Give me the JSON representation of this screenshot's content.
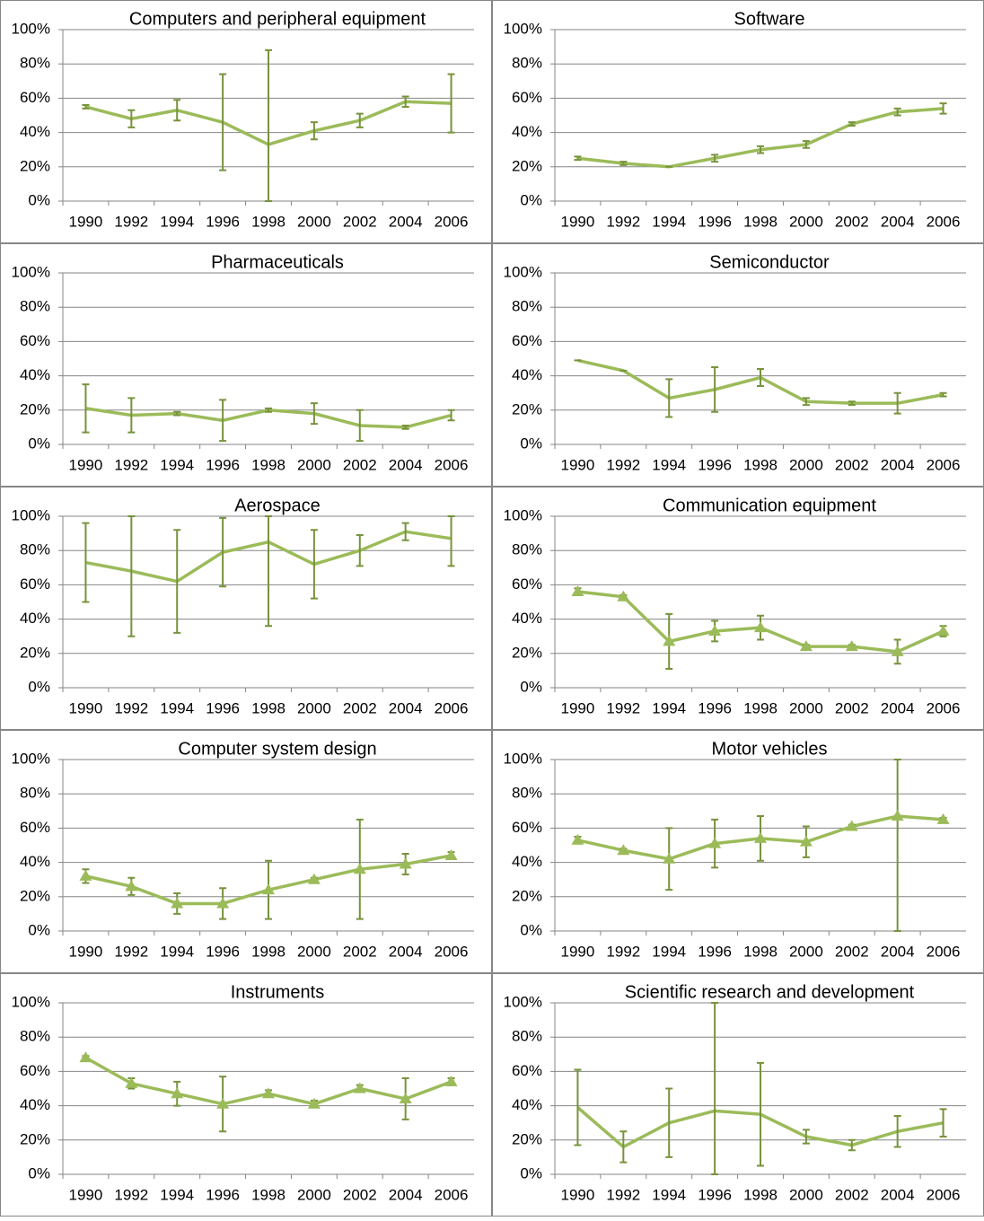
{
  "chart_data": [
    {
      "type": "line",
      "title": "Computers and peripheral equipment",
      "categories": [
        "1990",
        "1992",
        "1994",
        "1996",
        "1998",
        "2000",
        "2002",
        "2004",
        "2006"
      ],
      "values": [
        55,
        48,
        53,
        46,
        33,
        41,
        47,
        58,
        57
      ],
      "errors": [
        1,
        5,
        6,
        28,
        55,
        5,
        4,
        3,
        17
      ],
      "color": "#9bbb59",
      "marker": "none",
      "ylim": [
        0,
        100
      ],
      "yticks": [
        {
          "value": 0,
          "label": "0%"
        },
        {
          "value": 20,
          "label": "20%"
        },
        {
          "value": 40,
          "label": "40%"
        },
        {
          "value": 60,
          "label": "60%"
        },
        {
          "value": 80,
          "label": "80%"
        },
        {
          "value": 100,
          "label": "100%"
        }
      ],
      "grid": true
    },
    {
      "type": "line",
      "title": "Software",
      "categories": [
        "1990",
        "1992",
        "1994",
        "1996",
        "1998",
        "2000",
        "2002",
        "2004",
        "2006"
      ],
      "values": [
        25,
        22,
        20,
        25,
        30,
        33,
        45,
        52,
        54
      ],
      "errors": [
        1,
        1,
        0,
        2,
        2,
        2,
        1,
        2,
        3
      ],
      "color": "#9bbb59",
      "marker": "none",
      "ylim": [
        0,
        100
      ],
      "yticks": [
        {
          "value": 0,
          "label": "0%"
        },
        {
          "value": 20,
          "label": "20%"
        },
        {
          "value": 40,
          "label": "40%"
        },
        {
          "value": 60,
          "label": "60%"
        },
        {
          "value": 80,
          "label": "80%"
        },
        {
          "value": 100,
          "label": "100%"
        }
      ],
      "grid": true
    },
    {
      "type": "line",
      "title": "Pharmaceuticals",
      "categories": [
        "1990",
        "1992",
        "1994",
        "1996",
        "1998",
        "2000",
        "2002",
        "2004",
        "2006"
      ],
      "values": [
        21,
        17,
        18,
        14,
        20,
        18,
        11,
        10,
        17
      ],
      "errors": [
        14,
        10,
        1,
        12,
        1,
        6,
        9,
        1,
        3
      ],
      "color": "#9bbb59",
      "marker": "none",
      "ylim": [
        0,
        100
      ],
      "yticks": [
        {
          "value": 0,
          "label": "0%"
        },
        {
          "value": 20,
          "label": "20%"
        },
        {
          "value": 40,
          "label": "40%"
        },
        {
          "value": 60,
          "label": "60%"
        },
        {
          "value": 80,
          "label": "80%"
        },
        {
          "value": 100,
          "label": "100%"
        }
      ],
      "grid": true
    },
    {
      "type": "line",
      "title": "Semiconductor",
      "categories": [
        "1990",
        "1992",
        "1994",
        "1996",
        "1998",
        "2000",
        "2002",
        "2004",
        "2006"
      ],
      "values": [
        49,
        43,
        27,
        32,
        39,
        25,
        24,
        24,
        29
      ],
      "errors": [
        0,
        0,
        11,
        13,
        5,
        2,
        1,
        6,
        1
      ],
      "color": "#9bbb59",
      "marker": "none",
      "ylim": [
        0,
        100
      ],
      "yticks": [
        {
          "value": 0,
          "label": "0%"
        },
        {
          "value": 20,
          "label": "20%"
        },
        {
          "value": 40,
          "label": "40%"
        },
        {
          "value": 60,
          "label": "60%"
        },
        {
          "value": 80,
          "label": "80%"
        },
        {
          "value": 100,
          "label": "100%"
        }
      ],
      "grid": true
    },
    {
      "type": "line",
      "title": "Aerospace",
      "categories": [
        "1990",
        "1992",
        "1994",
        "1996",
        "1998",
        "2000",
        "2002",
        "2004",
        "2006"
      ],
      "values": [
        73,
        68,
        62,
        79,
        85,
        72,
        80,
        91,
        87
      ],
      "errors": [
        23,
        38,
        30,
        20,
        49,
        20,
        9,
        5,
        16
      ],
      "color": "#9bbb59",
      "marker": "none",
      "ylim": [
        0,
        100
      ],
      "yticks": [
        {
          "value": 0,
          "label": "0%"
        },
        {
          "value": 20,
          "label": "20%"
        },
        {
          "value": 40,
          "label": "40%"
        },
        {
          "value": 60,
          "label": "60%"
        },
        {
          "value": 80,
          "label": "80%"
        },
        {
          "value": 100,
          "label": "100%"
        }
      ],
      "grid": true
    },
    {
      "type": "line",
      "title": "Communication equipment",
      "categories": [
        "1990",
        "1992",
        "1994",
        "1996",
        "1998",
        "2000",
        "2002",
        "2004",
        "2006"
      ],
      "values": [
        56,
        53,
        27,
        33,
        35,
        24,
        24,
        21,
        33
      ],
      "errors": [
        2,
        1,
        16,
        6,
        7,
        1,
        1,
        7,
        3
      ],
      "color": "#9bbb59",
      "marker": "triangle",
      "ylim": [
        0,
        100
      ],
      "yticks": [
        {
          "value": 0,
          "label": "0%"
        },
        {
          "value": 20,
          "label": "20%"
        },
        {
          "value": 40,
          "label": "40%"
        },
        {
          "value": 60,
          "label": "60%"
        },
        {
          "value": 80,
          "label": "80%"
        },
        {
          "value": 100,
          "label": "100%"
        }
      ],
      "grid": true
    },
    {
      "type": "line",
      "title": "Computer system design",
      "categories": [
        "1990",
        "1992",
        "1994",
        "1996",
        "1998",
        "2000",
        "2002",
        "2004",
        "2006"
      ],
      "values": [
        32,
        26,
        16,
        16,
        24,
        30,
        36,
        39,
        44
      ],
      "errors": [
        4,
        5,
        6,
        9,
        17,
        1,
        29,
        6,
        2
      ],
      "color": "#9bbb59",
      "marker": "triangle",
      "ylim": [
        0,
        100
      ],
      "yticks": [
        {
          "value": 0,
          "label": "0%"
        },
        {
          "value": 20,
          "label": "20%"
        },
        {
          "value": 40,
          "label": "40%"
        },
        {
          "value": 60,
          "label": "60%"
        },
        {
          "value": 80,
          "label": "80%"
        },
        {
          "value": 100,
          "label": "100%"
        }
      ],
      "grid": true
    },
    {
      "type": "line",
      "title": "Motor vehicles",
      "categories": [
        "1990",
        "1992",
        "1994",
        "1996",
        "1998",
        "2000",
        "2002",
        "2004",
        "2006"
      ],
      "values": [
        53,
        47,
        42,
        51,
        54,
        52,
        61,
        67,
        65
      ],
      "errors": [
        2,
        1,
        18,
        14,
        13,
        9,
        1,
        67,
        1
      ],
      "color": "#9bbb59",
      "marker": "triangle",
      "ylim": [
        0,
        100
      ],
      "yticks": [
        {
          "value": 0,
          "label": "0%"
        },
        {
          "value": 20,
          "label": "20%"
        },
        {
          "value": 40,
          "label": "40%"
        },
        {
          "value": 60,
          "label": "60%"
        },
        {
          "value": 80,
          "label": "80%"
        },
        {
          "value": 100,
          "label": "100%"
        }
      ],
      "grid": true
    },
    {
      "type": "line",
      "title": "Instruments",
      "categories": [
        "1990",
        "1992",
        "1994",
        "1996",
        "1998",
        "2000",
        "2002",
        "2004",
        "2006"
      ],
      "values": [
        68,
        53,
        47,
        41,
        47,
        41,
        50,
        44,
        54
      ],
      "errors": [
        1,
        3,
        7,
        16,
        2,
        2,
        2,
        12,
        2
      ],
      "color": "#9bbb59",
      "marker": "triangle",
      "ylim": [
        0,
        100
      ],
      "yticks": [
        {
          "value": 0,
          "label": "0%"
        },
        {
          "value": 20,
          "label": "20%"
        },
        {
          "value": 40,
          "label": "40%"
        },
        {
          "value": 60,
          "label": "60%"
        },
        {
          "value": 80,
          "label": "80%"
        },
        {
          "value": 100,
          "label": "100%"
        }
      ],
      "grid": true
    },
    {
      "type": "line",
      "title": "Scientific research and development",
      "categories": [
        "1990",
        "1992",
        "1994",
        "1996",
        "1998",
        "2000",
        "2002",
        "2004",
        "2006"
      ],
      "values": [
        39,
        16,
        30,
        37,
        35,
        22,
        17,
        25,
        30
      ],
      "errors": [
        22,
        9,
        20,
        63,
        30,
        4,
        3,
        9,
        8
      ],
      "color": "#9bbb59",
      "marker": "none",
      "ylim": [
        0,
        100
      ],
      "yticks": [
        {
          "value": 0,
          "label": "0%"
        },
        {
          "value": 20,
          "label": "20%"
        },
        {
          "value": 40,
          "label": "40%"
        },
        {
          "value": 60,
          "label": "60%"
        },
        {
          "value": 80,
          "label": "80%"
        },
        {
          "value": 100,
          "label": "100%"
        }
      ],
      "grid": true
    }
  ]
}
